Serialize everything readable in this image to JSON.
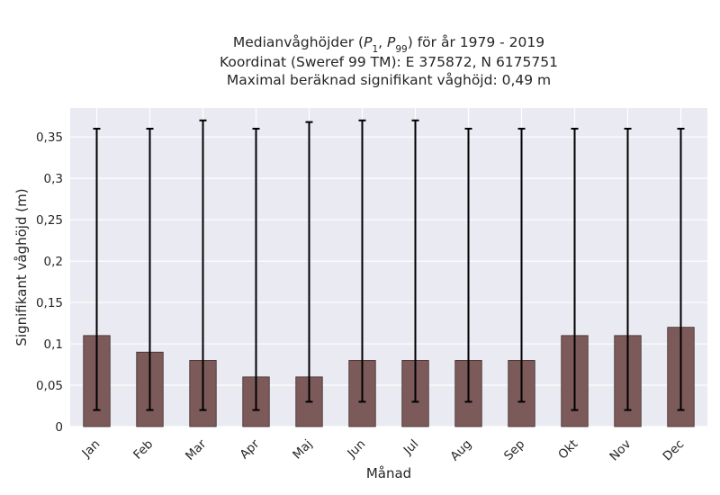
{
  "chart_data": {
    "type": "bar",
    "title_lines": [
      "Medianvåghöjder (P1, P99) för år 1979 - 2019",
      "Koordinat (Sweref 99 TM): E 375872, N 6175751",
      "Maximal beräknad signifikant våghöjd: 0,49 m"
    ],
    "xlabel": "Månad",
    "ylabel": "Signifikant våghöjd (m)",
    "categories": [
      "Jan",
      "Feb",
      "Mar",
      "Apr",
      "Maj",
      "Jun",
      "Jul",
      "Aug",
      "Sep",
      "Okt",
      "Nov",
      "Dec"
    ],
    "values": [
      0.11,
      0.09,
      0.08,
      0.06,
      0.06,
      0.08,
      0.08,
      0.08,
      0.08,
      0.11,
      0.11,
      0.12
    ],
    "p1": [
      0.02,
      0.02,
      0.02,
      0.02,
      0.03,
      0.03,
      0.03,
      0.03,
      0.03,
      0.02,
      0.02,
      0.02
    ],
    "p99": [
      0.36,
      0.36,
      0.37,
      0.36,
      0.368,
      0.37,
      0.37,
      0.36,
      0.36,
      0.36,
      0.36,
      0.36
    ],
    "ylim": [
      0,
      0.385
    ],
    "yticks": [
      0,
      0.05,
      0.1,
      0.15,
      0.2,
      0.25,
      0.3,
      0.35
    ],
    "ytick_labels": [
      "0",
      "0,05",
      "0,1",
      "0,15",
      "0,2",
      "0,25",
      "0,3",
      "0,35"
    ],
    "grid": true,
    "colors": {
      "plot_background": "#eaeaf2",
      "grid": "#ffffff",
      "bar_fill": "#7d5a5a",
      "bar_edge": "#3f2a2a",
      "error_bar": "#000000",
      "text": "#262626"
    }
  }
}
